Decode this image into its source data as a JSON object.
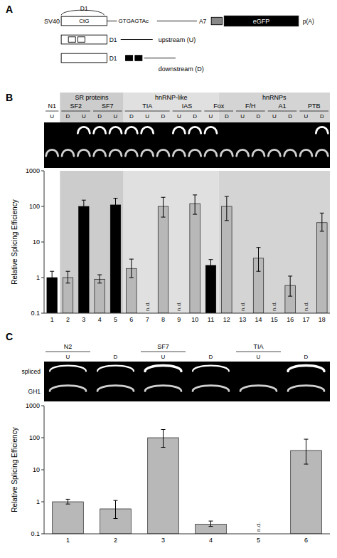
{
  "chart_data": [
    {
      "type": "diagram",
      "title": "A",
      "annotations": [
        "SV40",
        "CtG",
        "GTGAGTAc",
        "A7",
        "eGFP",
        "p(A)",
        "D1",
        "D1",
        "upstream (U)",
        "D1",
        "downstream (D)"
      ]
    },
    {
      "type": "bar",
      "title": "B",
      "categories": [
        "1",
        "2",
        "3",
        "4",
        "5",
        "6",
        "7",
        "8",
        "9",
        "10",
        "11",
        "12",
        "13",
        "14",
        "15",
        "16",
        "17",
        "18"
      ],
      "values": [
        1.0,
        1.0,
        100.0,
        0.9,
        110.0,
        1.8,
        null,
        100.0,
        null,
        120.0,
        2.2,
        100.0,
        null,
        3.5,
        null,
        0.6,
        null,
        35.0
      ],
      "errors_upper": [
        0.5,
        0.5,
        50.0,
        0.3,
        60.0,
        1.5,
        null,
        80.0,
        null,
        90.0,
        1.0,
        90.0,
        null,
        3.5,
        null,
        0.5,
        null,
        30.0
      ],
      "errors_lower": [
        0.3,
        0.3,
        30.0,
        0.2,
        40.0,
        0.8,
        null,
        50.0,
        null,
        60.0,
        0.8,
        60.0,
        null,
        2.0,
        null,
        0.3,
        null,
        15.0
      ],
      "colors": [
        "black",
        "#b8b8b8",
        "black",
        "#b8b8b8",
        "black",
        "#b8b8b8",
        "#b8b8b8",
        "#b8b8b8",
        "#b8b8b8",
        "#b8b8b8",
        "black",
        "#b8b8b8",
        "#b8b8b8",
        "#b8b8b8",
        "#b8b8b8",
        "#b8b8b8",
        "#b8b8b8",
        "#b8b8b8"
      ],
      "value_labels": [
        null,
        null,
        null,
        null,
        null,
        null,
        "n.d.",
        null,
        "n.d.",
        null,
        null,
        null,
        "n.d.",
        null,
        "n.d.",
        null,
        "n.d.",
        null
      ],
      "ylabel": "Relative Splicing Efficiency",
      "log": "y",
      "ylim": [
        0.1,
        1000
      ],
      "yticks": [
        0.1,
        1,
        10,
        100,
        1000
      ],
      "grid": false,
      "groups": [
        {
          "name": "SR proteins",
          "color": "#cccccc",
          "first": "2",
          "last": "5"
        },
        {
          "name": "hnRNP-like",
          "color": "#e0e0e0",
          "first": "6",
          "last": "11"
        },
        {
          "name": "hnRNPs",
          "color": "#d4d4d4",
          "first": "12",
          "last": "18"
        }
      ],
      "subgroups": [
        {
          "name": "N1",
          "first": "1",
          "last": "1"
        },
        {
          "name": "SF2",
          "first": "2",
          "last": "3"
        },
        {
          "name": "SF7",
          "first": "4",
          "last": "5"
        },
        {
          "name": "TIA",
          "first": "6",
          "last": "8"
        },
        {
          "name": "IAS",
          "first": "9",
          "last": "10"
        },
        {
          "name": "Fox",
          "first": "11",
          "last": "12"
        },
        {
          "name": "F/H",
          "first": "13",
          "last": "14"
        },
        {
          "name": "A1",
          "first": "15",
          "last": "16"
        },
        {
          "name": "PTB",
          "first": "17",
          "last": "18"
        }
      ],
      "lane_labels": [
        "U",
        "D",
        "U",
        "D",
        "U",
        "D",
        "U",
        "D",
        "U",
        "D",
        "U",
        "D",
        "U",
        "D",
        "U",
        "D",
        "U",
        "D"
      ],
      "gels": [
        {
          "color": "#ffffff",
          "bands": [
            3,
            4,
            5,
            6,
            7,
            9,
            10,
            11,
            18
          ]
        },
        {
          "color": "#d0d0d0",
          "bands": [
            1,
            2,
            3,
            4,
            5,
            6,
            7,
            8,
            9,
            10,
            11,
            12,
            13,
            14,
            15,
            16,
            17,
            18
          ]
        }
      ]
    },
    {
      "type": "bar",
      "title": "C",
      "categories": [
        "1",
        "2",
        "3",
        "4",
        "5",
        "6"
      ],
      "values": [
        1.0,
        0.6,
        100.0,
        0.2,
        null,
        40.0
      ],
      "errors_upper": [
        0.2,
        0.5,
        80.0,
        0.05,
        null,
        50.0
      ],
      "errors_lower": [
        0.15,
        0.3,
        50.0,
        0.03,
        null,
        25.0
      ],
      "colors": [
        "#b8b8b8",
        "#b8b8b8",
        "#b8b8b8",
        "#b8b8b8",
        "#b8b8b8",
        "#b8b8b8"
      ],
      "value_labels": [
        null,
        null,
        null,
        null,
        "n.d.",
        null
      ],
      "ylabel": "Relative Splicing Efficiency",
      "log": "y",
      "ylim": [
        0.1,
        1000
      ],
      "yticks": [
        0.1,
        1,
        10,
        100,
        1000
      ],
      "grid": false,
      "subgroups": [
        {
          "name": "N2",
          "first": "1",
          "last": "1"
        },
        {
          "name": "SF7",
          "first": "3",
          "last": "3"
        },
        {
          "name": "TIA",
          "first": "5",
          "last": "5"
        }
      ],
      "lane_labels": [
        "U",
        "D",
        "U",
        "D",
        "U",
        "D"
      ],
      "gels": [
        {
          "name": "spliced",
          "color": "#ffffff",
          "bands": [
            1,
            2,
            3,
            4,
            6
          ],
          "bright": [
            3,
            6
          ]
        },
        {
          "name": "GH1",
          "color": "#d0d0d0",
          "bands": [
            1,
            2,
            3,
            4,
            5,
            6
          ]
        }
      ]
    }
  ]
}
